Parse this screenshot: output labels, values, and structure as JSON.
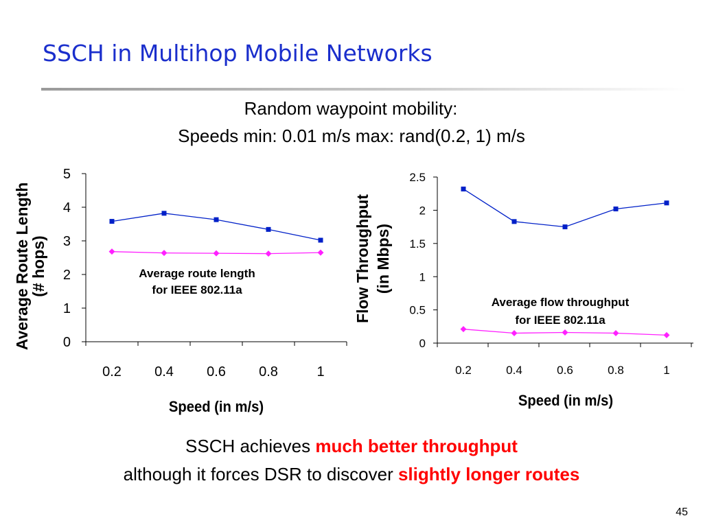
{
  "slide": {
    "title": "SSCH in Multihop Mobile Networks",
    "subtitle_line1": "Random waypoint mobility:",
    "subtitle_line2": "Speeds min: 0.01 m/s  max: rand(0.2, 1) m/s",
    "conclusion_line1_prefix": "SSCH achieves ",
    "conclusion_line1_highlight": "much better throughput",
    "conclusion_line2_prefix": "although it forces DSR to discover ",
    "conclusion_line2_highlight": "slightly longer routes",
    "page_number": "45"
  },
  "colors": {
    "series_a": "#0020c8",
    "series_b": "#ff20ff",
    "highlight": "#ff0000",
    "title": "#1a2ecc"
  },
  "chart_data": [
    {
      "type": "line",
      "ylabel_line1": "Average Route Length",
      "ylabel_line2": "(# hops)",
      "xlabel": "Speed (in m/s)",
      "x": [
        "0.2",
        "0.4",
        "0.6",
        "0.8",
        "1"
      ],
      "yticks": [
        "0",
        "1",
        "2",
        "3",
        "4",
        "5"
      ],
      "ylim": [
        0,
        5
      ],
      "series": [
        {
          "values": [
            3.58,
            3.82,
            3.63,
            3.34,
            3.02
          ],
          "color": "#0020c8",
          "marker": "square"
        },
        {
          "values": [
            2.68,
            2.64,
            2.63,
            2.62,
            2.65
          ],
          "color": "#ff20ff",
          "marker": "diamond"
        }
      ],
      "annotation_line1": "Average route length",
      "annotation_line2": "for IEEE 802.11a"
    },
    {
      "type": "line",
      "ylabel_line1": "Flow Throughput",
      "ylabel_line2": "(in Mbps)",
      "xlabel": "Speed (in m/s)",
      "x": [
        "0.2",
        "0.4",
        "0.6",
        "0.8",
        "1"
      ],
      "yticks": [
        "0",
        "0.5",
        "1",
        "1.5",
        "2",
        "2.5"
      ],
      "ylim": [
        0,
        2.5
      ],
      "series": [
        {
          "values": [
            2.32,
            1.83,
            1.75,
            2.02,
            2.11
          ],
          "color": "#0020c8",
          "marker": "square"
        },
        {
          "values": [
            0.21,
            0.15,
            0.16,
            0.15,
            0.12
          ],
          "color": "#ff20ff",
          "marker": "diamond"
        }
      ],
      "annotation_line1": "Average flow throughput",
      "annotation_line2": "for IEEE 802.11a"
    }
  ]
}
